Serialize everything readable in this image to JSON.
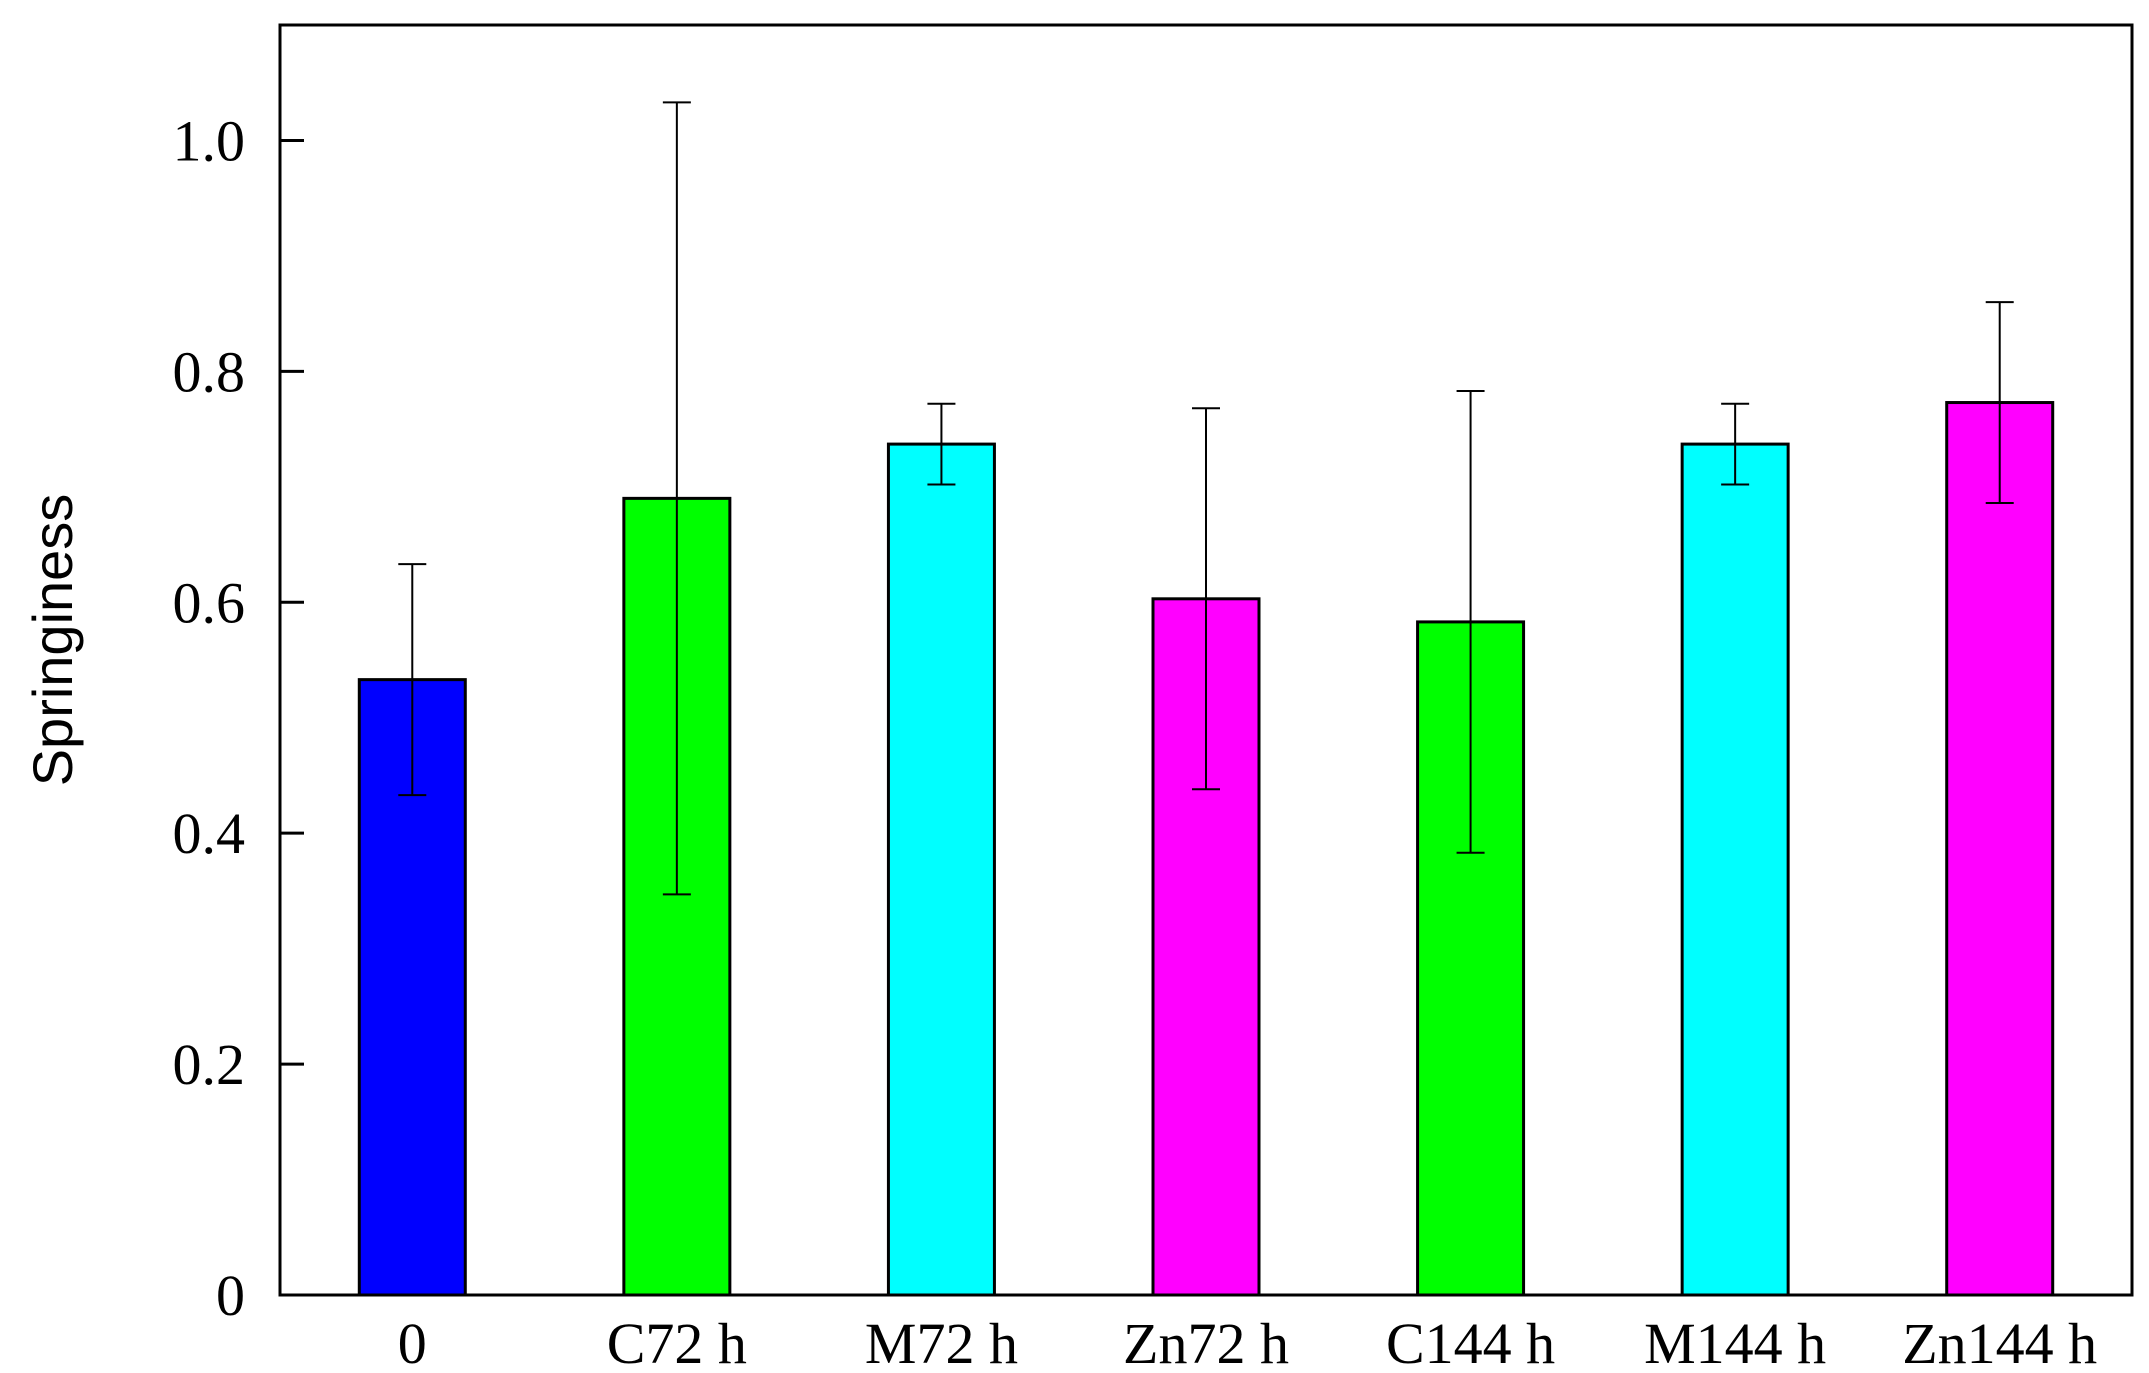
{
  "chart_data": {
    "type": "bar",
    "title": "",
    "xlabel": "",
    "ylabel": "Springiness",
    "categories": [
      "0",
      "C72 h",
      "M72 h",
      "Zn72 h",
      "C144 h",
      "M144 h",
      "Zn144 h"
    ],
    "values": [
      0.533,
      0.69,
      0.737,
      0.603,
      0.583,
      0.737,
      0.773
    ],
    "errors": [
      0.1,
      0.343,
      0.035,
      0.165,
      0.2,
      0.035,
      0.087
    ],
    "colors": [
      "#0000ff",
      "#00ff00",
      "#00ffff",
      "#ff00ff",
      "#00ff00",
      "#00ffff",
      "#ff00ff"
    ],
    "ylim": [
      0,
      1.1
    ],
    "yticks": [
      0,
      0.2,
      0.4,
      0.6,
      0.8,
      1.0
    ],
    "ytick_labels": [
      "0",
      "0.2",
      "0.4",
      "0.6",
      "0.8",
      "1.0"
    ],
    "grid": false,
    "legend": "none"
  }
}
